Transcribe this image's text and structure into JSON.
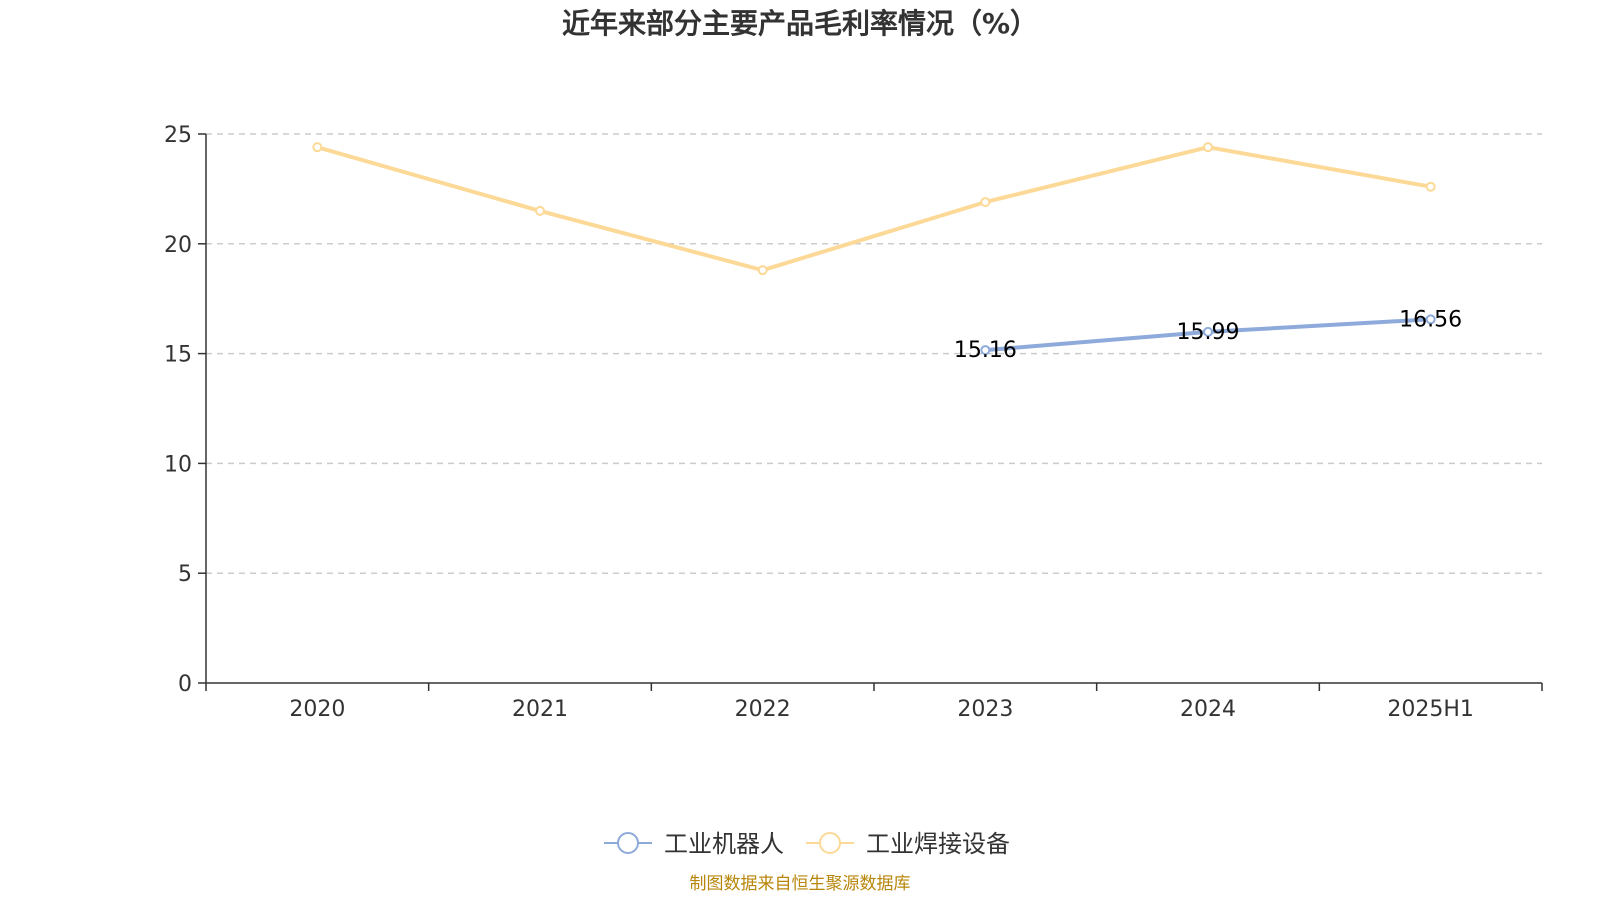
{
  "chart_data": {
    "type": "line",
    "title": "近年来部分主要产品毛利率情况（%）",
    "categories": [
      "2020",
      "2021",
      "2022",
      "2023",
      "2024",
      "2025H1"
    ],
    "ylim": [
      0,
      25
    ],
    "yticks": [
      0,
      5,
      10,
      15,
      20,
      25
    ],
    "grid": true,
    "legend_position": "bottom",
    "series": [
      {
        "name": "工业机器人",
        "color": "#8eaadb",
        "values": [
          null,
          null,
          null,
          15.16,
          15.99,
          16.56
        ],
        "labels": [
          null,
          null,
          null,
          "15.16",
          "15.99",
          "16.56"
        ]
      },
      {
        "name": "工业焊接设备",
        "color": "#fcd997",
        "values": [
          24.4,
          21.5,
          18.8,
          21.9,
          24.4,
          22.6
        ],
        "labels": [
          null,
          null,
          null,
          null,
          null,
          null
        ]
      }
    ],
    "source": "制图数据来自恒生聚源数据库"
  }
}
